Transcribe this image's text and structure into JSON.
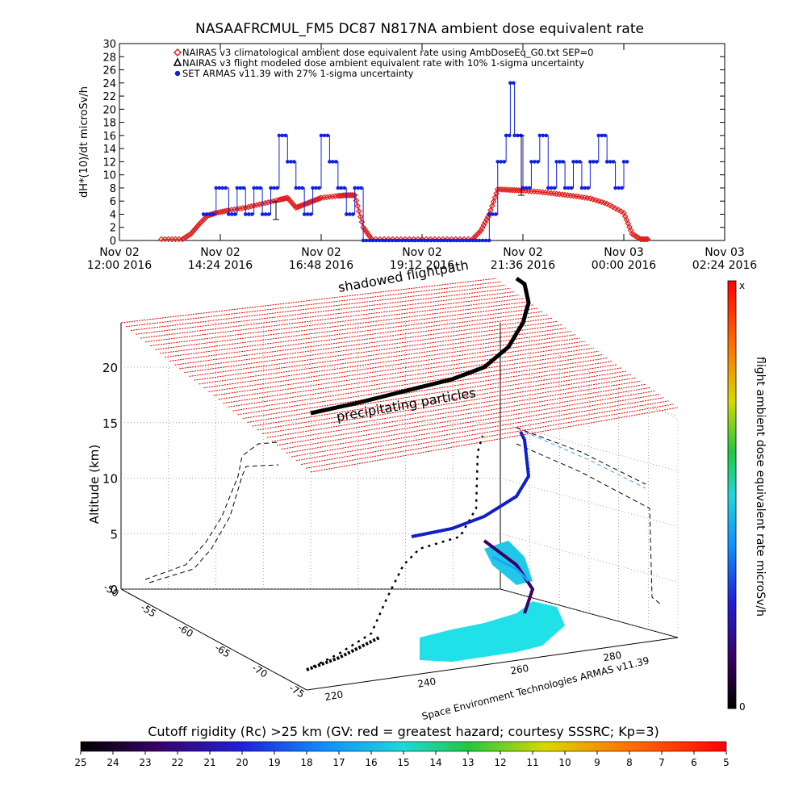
{
  "chart_data": [
    {
      "type": "line",
      "title": "NASAAFRCMUL_FM5 DC87 N817NA ambient dose equivalent rate",
      "ylabel": "dH*(10)/dt microSv/h",
      "ylim": [
        0,
        30
      ],
      "yticks": [
        "0",
        "2",
        "4",
        "6",
        "8",
        "10",
        "12",
        "14",
        "16",
        "18",
        "20",
        "22",
        "24",
        "26",
        "28",
        "30"
      ],
      "xlim_hours": [
        12.0,
        26.4
      ],
      "xticks": [
        {
          "l1": "Nov 02",
          "l2": "12:00 2016",
          "h": 12.0
        },
        {
          "l1": "Nov 02",
          "l2": "14:24 2016",
          "h": 14.4
        },
        {
          "l1": "Nov 02",
          "l2": "16:48 2016",
          "h": 16.8
        },
        {
          "l1": "Nov 02",
          "l2": "19:12 2016",
          "h": 19.2
        },
        {
          "l1": "Nov 02",
          "l2": "21:36 2016",
          "h": 21.6
        },
        {
          "l1": "Nov 03",
          "l2": "00:00 2016",
          "h": 24.0
        },
        {
          "l1": "Nov 03",
          "l2": "02:24 2016",
          "h": 26.4
        }
      ],
      "legend": [
        {
          "label": "NAIRAS v3 climatological ambient dose equivalent rate using AmbDoseEq_G0.txt SEP=0",
          "symbol": "diamond",
          "color": "#e02020"
        },
        {
          "label": "NAIRAS v3 flight modeled dose ambient equivalent rate with 10% 1-sigma uncertainty",
          "symbol": "triangle",
          "color": "#000000"
        },
        {
          "label": "SET ARMAS v11.39 with 27% 1-sigma uncertainty",
          "symbol": "dot",
          "color": "#1020e0"
        }
      ],
      "series": [
        {
          "name": "NAIRAS v3 climatological ambient dose equivalent rate using AmbDoseEq_G0.txt SEP=0",
          "color": "#e02020",
          "x": [
            13.0,
            13.5,
            13.7,
            13.9,
            14.1,
            14.3,
            14.6,
            15.0,
            15.4,
            15.8,
            16.0,
            16.2,
            16.4,
            16.6,
            16.8,
            17.2,
            17.4,
            17.6,
            17.8,
            18.0,
            18.6,
            19.2,
            19.8,
            20.4,
            20.6,
            20.8,
            21.0,
            21.3,
            21.6,
            22.0,
            22.4,
            22.8,
            23.2,
            23.6,
            24.0,
            24.2,
            24.4,
            24.6
          ],
          "y": [
            0.2,
            0.2,
            1.0,
            2.5,
            3.8,
            4.2,
            4.6,
            5.0,
            5.6,
            6.2,
            6.5,
            5.0,
            5.5,
            6.0,
            6.5,
            6.8,
            6.9,
            6.9,
            2.0,
            0.2,
            0.2,
            0.2,
            0.2,
            0.2,
            1.5,
            4.0,
            7.8,
            7.7,
            7.6,
            7.4,
            7.1,
            6.8,
            6.4,
            5.6,
            4.2,
            1.0,
            0.2,
            0.2
          ]
        },
        {
          "name": "SET ARMAS v11.39 with 27% 1-sigma uncertainty",
          "color": "#1020e0",
          "x": [
            14.0,
            14.3,
            14.6,
            14.8,
            15.0,
            15.2,
            15.4,
            15.6,
            15.8,
            16.0,
            16.2,
            16.4,
            16.6,
            16.8,
            17.0,
            17.2,
            17.4,
            17.6,
            17.8,
            20.8,
            21.0,
            21.2,
            21.3,
            21.4,
            21.6,
            21.8,
            22.0,
            22.2,
            22.4,
            22.6,
            22.8,
            23.0,
            23.2,
            23.4,
            23.6,
            23.8,
            24.0
          ],
          "y": [
            4,
            8,
            4,
            8,
            4,
            8,
            4,
            8,
            16,
            12,
            8,
            4,
            8,
            16,
            12,
            8,
            4,
            8,
            0,
            4,
            12,
            16,
            24,
            16,
            8,
            12,
            16,
            8,
            12,
            8,
            12,
            8,
            12,
            16,
            12,
            8,
            12
          ]
        }
      ]
    },
    {
      "type": "scatter",
      "zlabel": "Altitude (km)",
      "zticks": [
        "0",
        "5",
        "10",
        "15",
        "20"
      ],
      "lat_ticks": [
        "-50",
        "-55",
        "-60",
        "-65",
        "-70",
        "-75"
      ],
      "lon_ticks": [
        "220",
        "240",
        "260",
        "280"
      ],
      "annotations": [
        "shadowed flightpath",
        "precipitating particles"
      ],
      "credit": "Space Environment Technologies ARMAS v11.39",
      "colorbar": {
        "label": "flight ambient dose equivalent rate microSv/h",
        "top": "x",
        "bottom": "0"
      },
      "rc_colorbar": {
        "title": "Cutoff rigidity (Rc) >25 km (GV: red = greatest hazard; courtesy SSSRC; Kp=3)",
        "ticks": [
          "25",
          "24",
          "23",
          "22",
          "21",
          "20",
          "19",
          "18",
          "17",
          "16",
          "15",
          "14",
          "13",
          "12",
          "11",
          "10",
          "9",
          "8",
          "7",
          "6",
          "5"
        ]
      }
    }
  ]
}
